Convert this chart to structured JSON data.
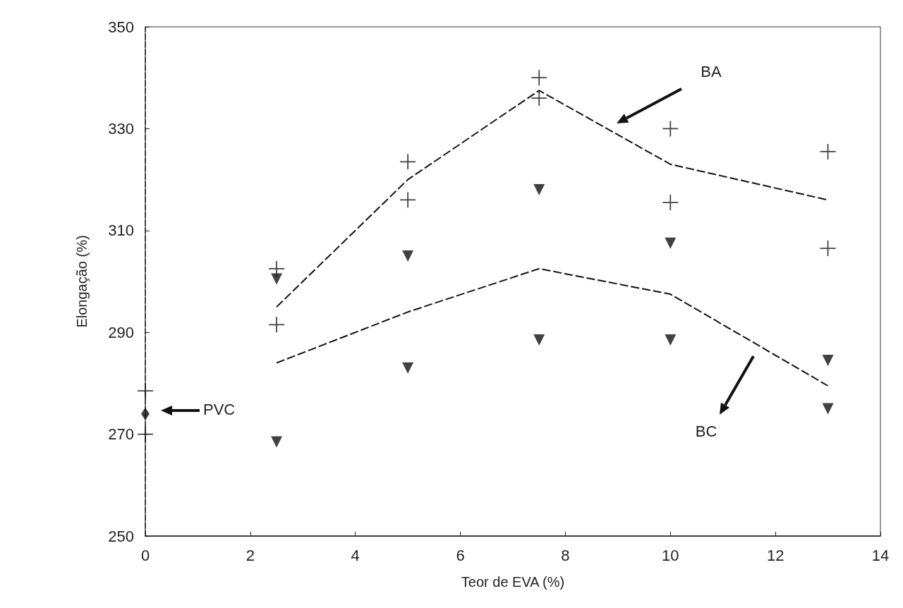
{
  "chart_data": {
    "type": "line",
    "xlabel": "Teor de EVA (%)",
    "ylabel": "Elongação (%)",
    "xlim": [
      0,
      14
    ],
    "xticks": [
      0,
      2,
      4,
      6,
      8,
      10,
      12,
      14
    ],
    "ylim": [
      250,
      350
    ],
    "yticks": [
      250,
      270,
      290,
      310,
      330,
      350
    ],
    "grid": false,
    "marker": "none",
    "line_style": "dashed",
    "series": [
      {
        "type": "line",
        "color": "#111111",
        "x": [
          2.5,
          5,
          7.5,
          10,
          13
        ],
        "values": [
          295,
          320,
          337.5,
          323,
          316
        ]
      },
      {
        "type": "line",
        "color": "#111111",
        "x": [
          2.5,
          5,
          7.5,
          10,
          13
        ],
        "values": [
          284,
          294,
          302.5,
          297.5,
          279.5
        ]
      },
      {
        "type": "scatter",
        "marker": "cross",
        "color": "#111111",
        "x": [
          0,
          0,
          2.5,
          2.5,
          5,
          5,
          7.5,
          7.5,
          10,
          10,
          13,
          13
        ],
        "values": [
          278.5,
          270,
          302.5,
          291.5,
          323.5,
          316,
          340,
          336,
          330,
          315.5,
          325.5,
          306.5
        ]
      },
      {
        "type": "scatter",
        "marker": "triangle",
        "color": "#111111",
        "x": [
          2.5,
          2.5,
          5,
          5,
          7.5,
          7.5,
          10,
          10,
          13,
          13
        ],
        "values": [
          300.5,
          268.5,
          305,
          283,
          318,
          288.5,
          307.5,
          288.5,
          284.5,
          275
        ]
      },
      {
        "type": "scatter",
        "marker": "diamond",
        "color": "#111111",
        "x": [
          0
        ],
        "values": [
          274
        ]
      }
    ],
    "annotations": [
      "BA",
      "BC",
      "PVC"
    ]
  }
}
